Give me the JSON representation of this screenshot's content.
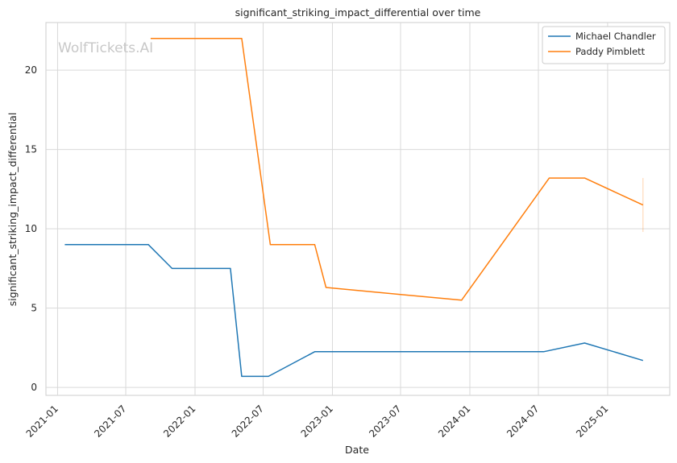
{
  "chart_data": {
    "type": "line",
    "title": "significant_striking_impact_differential over time",
    "xlabel": "Date",
    "ylabel": "significant_striking_impact_differential",
    "watermark": "WolfTickets.AI",
    "x_ticks": [
      "2021-01",
      "2021-07",
      "2022-01",
      "2022-07",
      "2023-01",
      "2023-07",
      "2024-01",
      "2024-07",
      "2025-01"
    ],
    "y_ticks": [
      0,
      5,
      10,
      15,
      20
    ],
    "xlim": [
      "2020-12-01",
      "2025-06-15"
    ],
    "ylim": [
      -0.5,
      23.0
    ],
    "grid": true,
    "legend_position": "top-right",
    "series": [
      {
        "name": "Michael Chandler",
        "color": "#1f77b4",
        "points": [
          [
            "2021-01-20",
            9.0
          ],
          [
            "2021-08-30",
            9.0
          ],
          [
            "2021-11-01",
            7.5
          ],
          [
            "2022-04-05",
            7.5
          ],
          [
            "2022-05-05",
            0.7
          ],
          [
            "2022-07-15",
            0.7
          ],
          [
            "2022-11-15",
            2.25
          ],
          [
            "2024-07-15",
            2.25
          ],
          [
            "2024-11-01",
            2.8
          ],
          [
            "2025-04-05",
            1.7
          ]
        ]
      },
      {
        "name": "Paddy Pimblett",
        "color": "#ff7f0e",
        "points": [
          [
            "2021-09-05",
            22.0
          ],
          [
            "2022-05-05",
            22.0
          ],
          [
            "2022-07-20",
            9.0
          ],
          [
            "2022-11-15",
            9.0
          ],
          [
            "2022-12-15",
            6.3
          ],
          [
            "2023-12-10",
            5.5
          ],
          [
            "2024-07-30",
            13.2
          ],
          [
            "2024-11-01",
            13.2
          ],
          [
            "2025-04-05",
            11.5
          ]
        ],
        "error_band": [
          "2025-04-05",
          9.8,
          13.2
        ]
      }
    ]
  }
}
